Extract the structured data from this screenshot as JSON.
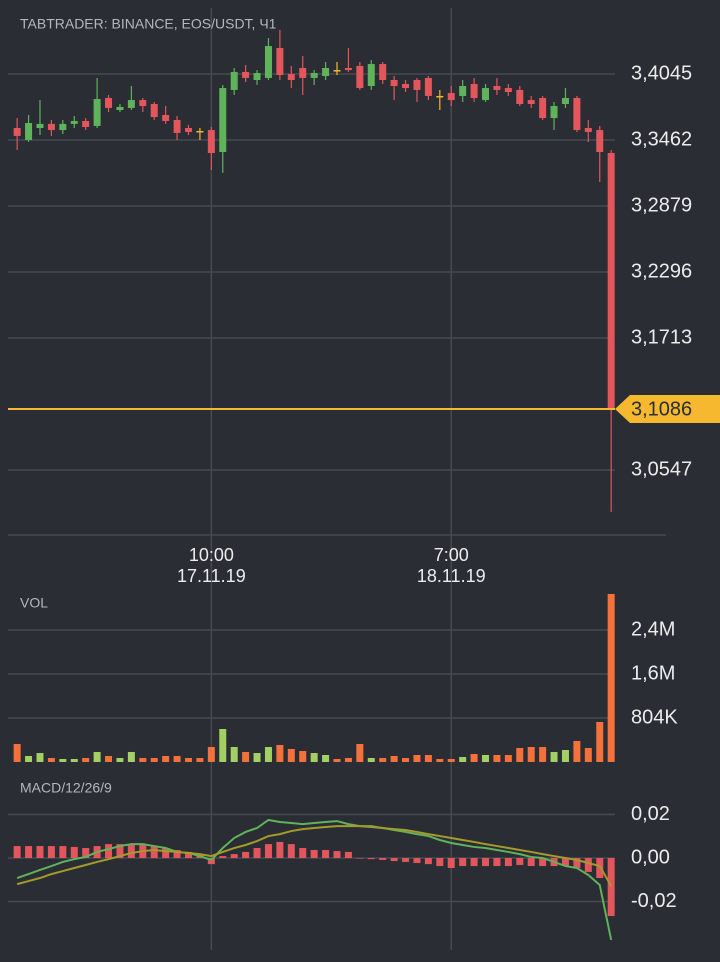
{
  "chart_data": [
    {
      "type": "candlestick",
      "title": "TABTRADER: BINANCE, EOS/USDT, Ч1",
      "open": [
        3.3568,
        3.3462,
        3.3568,
        3.3604,
        3.355,
        3.3604,
        3.363,
        3.3586,
        3.3833,
        3.3727,
        3.3745,
        3.3815,
        3.378,
        3.3683,
        3.3639,
        3.3568,
        3.3542,
        3.355,
        3.3356,
        3.3904,
        3.4063,
        3.3992,
        3.401,
        3.4275,
        3.4045,
        3.4098,
        3.401,
        3.4027,
        3.408,
        3.4098,
        3.4116,
        3.3939,
        3.4133,
        3.3992,
        3.3957,
        3.3992,
        3.401,
        3.3851,
        3.3877,
        3.3851,
        3.3957,
        3.3815,
        3.3939,
        3.3921,
        3.3904,
        3.3815,
        3.3833,
        3.3656,
        3.378,
        3.3833,
        3.3568,
        3.355,
        3.3347
      ],
      "high": [
        3.3656,
        3.3683,
        3.3815,
        3.3639,
        3.3639,
        3.3674,
        3.3656,
        3.401,
        3.386,
        3.378,
        3.3939,
        3.3833,
        3.3798,
        3.3762,
        3.3674,
        3.3595,
        3.3568,
        3.3577,
        3.3948,
        3.4098,
        3.4125,
        3.408,
        3.4363,
        3.4434,
        3.4116,
        3.4204,
        3.408,
        3.4151,
        3.4151,
        3.4275,
        3.4151,
        3.4169,
        3.4151,
        3.4027,
        3.3992,
        3.401,
        3.4027,
        3.3904,
        3.3939,
        3.3992,
        3.401,
        3.3957,
        3.401,
        3.3957,
        3.3939,
        3.3851,
        3.3851,
        3.3798,
        3.3921,
        3.3851,
        3.3639,
        3.3586,
        3.3374
      ],
      "low": [
        3.3374,
        3.3445,
        3.3506,
        3.3498,
        3.3515,
        3.3568,
        3.355,
        3.3568,
        3.3709,
        3.3709,
        3.3727,
        3.3709,
        3.3639,
        3.3604,
        3.3462,
        3.3506,
        3.3462,
        3.3197,
        3.3171,
        3.386,
        3.3974,
        3.3948,
        3.3992,
        3.3992,
        3.3921,
        3.386,
        3.3948,
        3.3992,
        3.4036,
        3.4063,
        3.3904,
        3.3904,
        3.3957,
        3.3815,
        3.3886,
        3.3798,
        3.3815,
        3.3727,
        3.3762,
        3.3798,
        3.3798,
        3.3798,
        3.386,
        3.3851,
        3.3762,
        3.3745,
        3.3639,
        3.355,
        3.3745,
        3.3533,
        3.3445,
        3.3091,
        3.0177
      ],
      "close": [
        3.3498,
        3.3612,
        3.3604,
        3.355,
        3.3604,
        3.363,
        3.3577,
        3.3824,
        3.3745,
        3.3754,
        3.3815,
        3.3762,
        3.3665,
        3.363,
        3.3524,
        3.3533,
        3.3542,
        3.3347,
        3.3921,
        3.4063,
        3.401,
        3.4054,
        3.4292,
        3.4036,
        3.3992,
        3.401,
        3.4054,
        3.4098,
        3.408,
        3.408,
        3.3921,
        3.4133,
        3.3992,
        3.3939,
        3.3921,
        3.3904,
        3.3851,
        3.3851,
        3.3815,
        3.3939,
        3.3833,
        3.3921,
        3.3904,
        3.3886,
        3.378,
        3.378,
        3.3656,
        3.3762,
        3.3833,
        3.355,
        3.3533,
        3.3356,
        3.1086
      ],
      "up_color": "#5fb35b",
      "down_color": "#e2565c",
      "doji_color": "#f5b82e",
      "xlim": [
        -0.8,
        57.5
      ],
      "xticks": [
        {
          "value": 17,
          "label": [
            "10:00",
            "17.11.19"
          ]
        },
        {
          "value": 38,
          "label": [
            "7:00",
            "18.11.19"
          ]
        }
      ],
      "ylim": [
        2.9973,
        3.4628
      ],
      "yticks": [
        {
          "value": 3.4045,
          "label": "3,4045"
        },
        {
          "value": 3.3462,
          "label": "3,3462"
        },
        {
          "value": 3.2879,
          "label": "3,2879"
        },
        {
          "value": 3.2296,
          "label": "3,2296"
        },
        {
          "value": 3.1713,
          "label": "3,1713"
        },
        {
          "value": 3.0547,
          "label": "3,0547"
        }
      ],
      "last_price": {
        "value": 3.1086,
        "label": "3,1086",
        "color": "#f5b82e"
      },
      "grid": true
    },
    {
      "type": "bar",
      "title": "VOL",
      "values": [
        329000,
        110000,
        164000,
        73000,
        55000,
        55000,
        73000,
        183000,
        110000,
        73000,
        183000,
        73000,
        73000,
        110000,
        110000,
        73000,
        73000,
        274000,
        603000,
        274000,
        183000,
        164000,
        274000,
        311000,
        238000,
        201000,
        164000,
        128000,
        55000,
        73000,
        329000,
        73000,
        73000,
        110000,
        73000,
        128000,
        128000,
        55000,
        55000,
        91000,
        146000,
        128000,
        128000,
        128000,
        256000,
        274000,
        274000,
        183000,
        219000,
        384000,
        256000,
        731000,
        3070000
      ],
      "up_color": "#a3d063",
      "down_color": "#f4713b",
      "ylim": [
        0,
        3106000
      ],
      "yticks": [
        {
          "value": 804000,
          "label": "804K"
        },
        {
          "value": 1608000,
          "label": "1,6M"
        },
        {
          "value": 2412000,
          "label": "2,4M"
        }
      ],
      "grid": true
    },
    {
      "type": "macd",
      "title": "MACD/12/26/9",
      "histogram": {
        "color": "#e2565c",
        "values": [
          0.0055,
          0.0055,
          0.0055,
          0.0055,
          0.0055,
          0.0051,
          0.0046,
          0.0055,
          0.0064,
          0.0064,
          0.0064,
          0.0064,
          0.0055,
          0.0046,
          0.0037,
          0.0028,
          0.0018,
          -0.0028,
          0.0009,
          0.0018,
          0.0028,
          0.0046,
          0.0064,
          0.0074,
          0.0064,
          0.0046,
          0.0037,
          0.0037,
          0.0032,
          0.0028,
          0,
          -0.0005,
          -0.0009,
          -0.0014,
          -0.0018,
          -0.0023,
          -0.0028,
          -0.0037,
          -0.0046,
          -0.0037,
          -0.0037,
          -0.0037,
          -0.0037,
          -0.0037,
          -0.0032,
          -0.0037,
          -0.0037,
          -0.0037,
          -0.0037,
          -0.0046,
          -0.0064,
          -0.0092,
          -0.0267
        ]
      },
      "series": [
        {
          "color": "#5fb35b",
          "values": [
            -0.0092,
            -0.0074,
            -0.0055,
            -0.0037,
            -0.0018,
            -0.0005,
            0.0005,
            0.0028,
            0.0041,
            0.0055,
            0.0064,
            0.0064,
            0.0055,
            0.0046,
            0.0028,
            0.0023,
            0.0009,
            -0.0009,
            0.0046,
            0.0092,
            0.012,
            0.0138,
            0.0175,
            0.0166,
            0.0161,
            0.0156,
            0.0161,
            0.0166,
            0.017,
            0.0156,
            0.0147,
            0.0147,
            0.0138,
            0.0129,
            0.012,
            0.011,
            0.0101,
            0.0083,
            0.0069,
            0.006,
            0.0051,
            0.0046,
            0.0037,
            0.0028,
            0.0018,
            0.0005,
            0,
            -0.0018,
            -0.0037,
            -0.0046,
            -0.0078,
            -0.0124,
            -0.0377
          ]
        },
        {
          "color": "#a39b2b",
          "values": [
            -0.012,
            -0.0106,
            -0.0092,
            -0.0074,
            -0.006,
            -0.0046,
            -0.0032,
            -0.0018,
            -0.0005,
            0.0009,
            0.0023,
            0.0032,
            0.0037,
            0.0032,
            0.0028,
            0.0023,
            0.0018,
            0.0009,
            0.0028,
            0.0046,
            0.006,
            0.0078,
            0.0101,
            0.011,
            0.0124,
            0.0133,
            0.0138,
            0.0143,
            0.0147,
            0.0147,
            0.0147,
            0.0143,
            0.0138,
            0.0133,
            0.0129,
            0.012,
            0.011,
            0.0101,
            0.0092,
            0.0083,
            0.0074,
            0.0064,
            0.0055,
            0.0046,
            0.0037,
            0.0028,
            0.0018,
            0.0009,
            0,
            -0.0009,
            -0.0023,
            -0.0037,
            -0.0129
          ]
        }
      ],
      "ylim": [
        -0.0414,
        0.0359
      ],
      "yticks": [
        {
          "value": 0.02,
          "label": "0,02"
        },
        {
          "value": 0,
          "label": "0,00"
        },
        {
          "value": -0.02,
          "label": "-0,02"
        }
      ],
      "grid": true
    }
  ]
}
